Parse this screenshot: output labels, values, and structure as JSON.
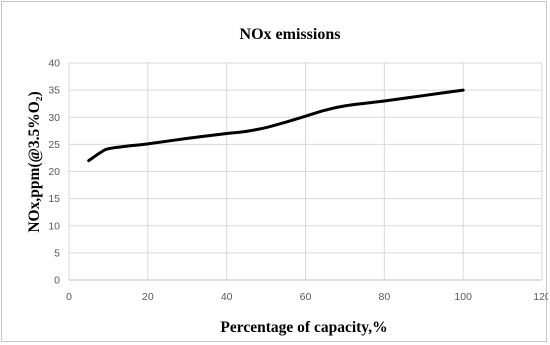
{
  "chart_data": {
    "type": "line",
    "title": "NOx emissions",
    "xlabel": "Percentage of capacity,%",
    "ylabel": "NOx,ppm(@3.5%O₂)",
    "xlim": [
      0,
      120
    ],
    "ylim": [
      0,
      40
    ],
    "xticks": [
      0,
      20,
      40,
      60,
      80,
      100,
      120
    ],
    "yticks": [
      0,
      5,
      10,
      15,
      20,
      25,
      30,
      35,
      40
    ],
    "grid": true,
    "series": [
      {
        "color": "#000000",
        "x": [
          5,
          8,
          10,
          15,
          20,
          30,
          40,
          45,
          50,
          55,
          60,
          65,
          70,
          80,
          90,
          100
        ],
        "y": [
          22,
          23.5,
          24.2,
          24.7,
          25.1,
          26.1,
          27.0,
          27.4,
          28.1,
          29.1,
          30.2,
          31.3,
          32.1,
          33.0,
          34.0,
          35.0
        ]
      }
    ]
  }
}
